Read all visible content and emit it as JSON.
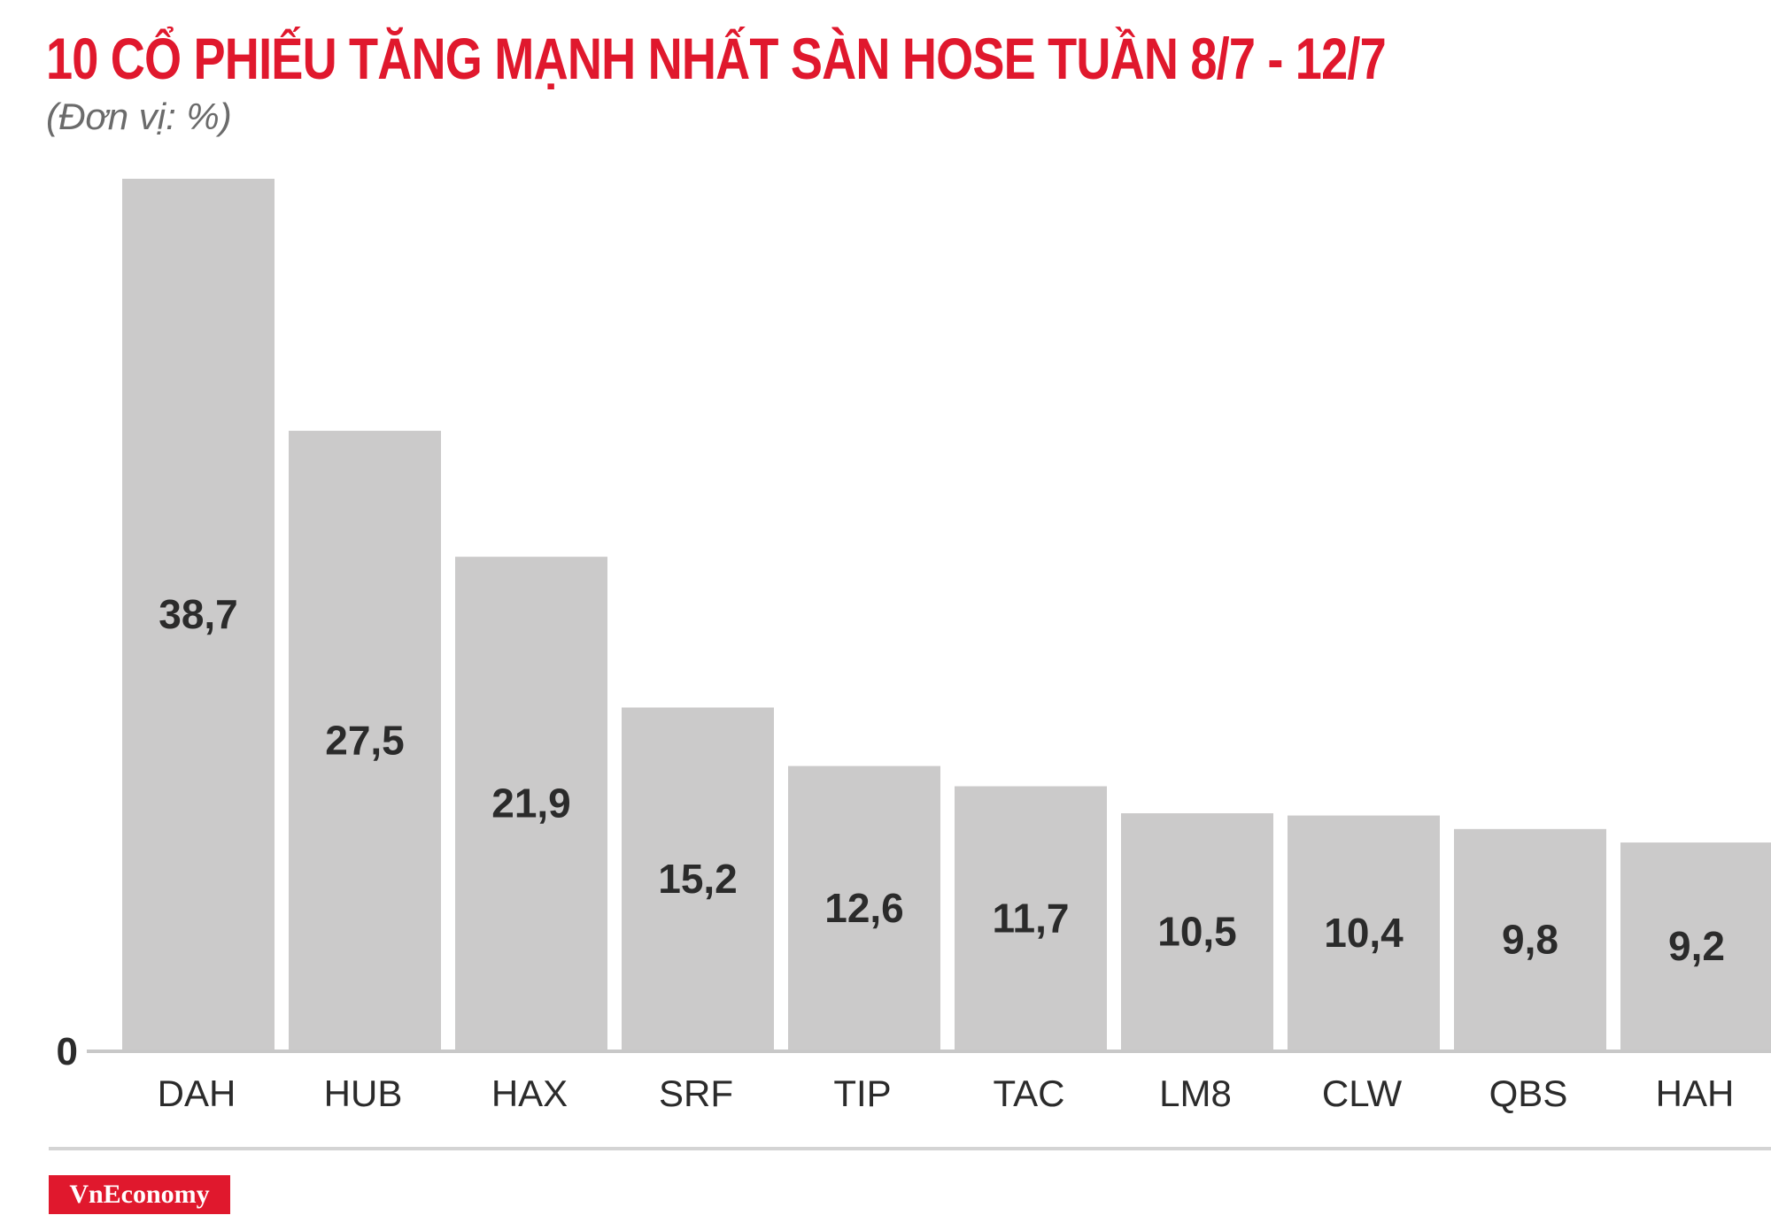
{
  "title": "10 CỔ PHIẾU TĂNG MẠNH NHẤT SÀN HOSE TUẦN 8/7 - 12/7",
  "subtitle": "(Đơn vị: %)",
  "logo": "VnEconomy",
  "colors": {
    "title": "#e0182d",
    "bar": "#cbcaca",
    "logo_bg": "#e0182d"
  },
  "chart_data": {
    "type": "bar",
    "categories": [
      "DAH",
      "HUB",
      "HAX",
      "SRF",
      "TIP",
      "TAC",
      "LM8",
      "CLW",
      "QBS",
      "HAH"
    ],
    "values": [
      38.7,
      27.5,
      21.9,
      15.2,
      12.6,
      11.7,
      10.5,
      10.4,
      9.8,
      9.2
    ],
    "value_labels": [
      "38,7",
      "27,5",
      "21,9",
      "15,2",
      "12,6",
      "11,7",
      "10,5",
      "10,4",
      "9,8",
      "9,2"
    ],
    "title": "10 CỔ PHIẾU TĂNG MẠNH NHẤT SÀN HOSE TUẦN 8/7 - 12/7",
    "subtitle": "(Đơn vị: %)",
    "y_tick_labels": [
      "0"
    ],
    "ylim": [
      0,
      38.7
    ],
    "grid": false,
    "legend": "none"
  }
}
